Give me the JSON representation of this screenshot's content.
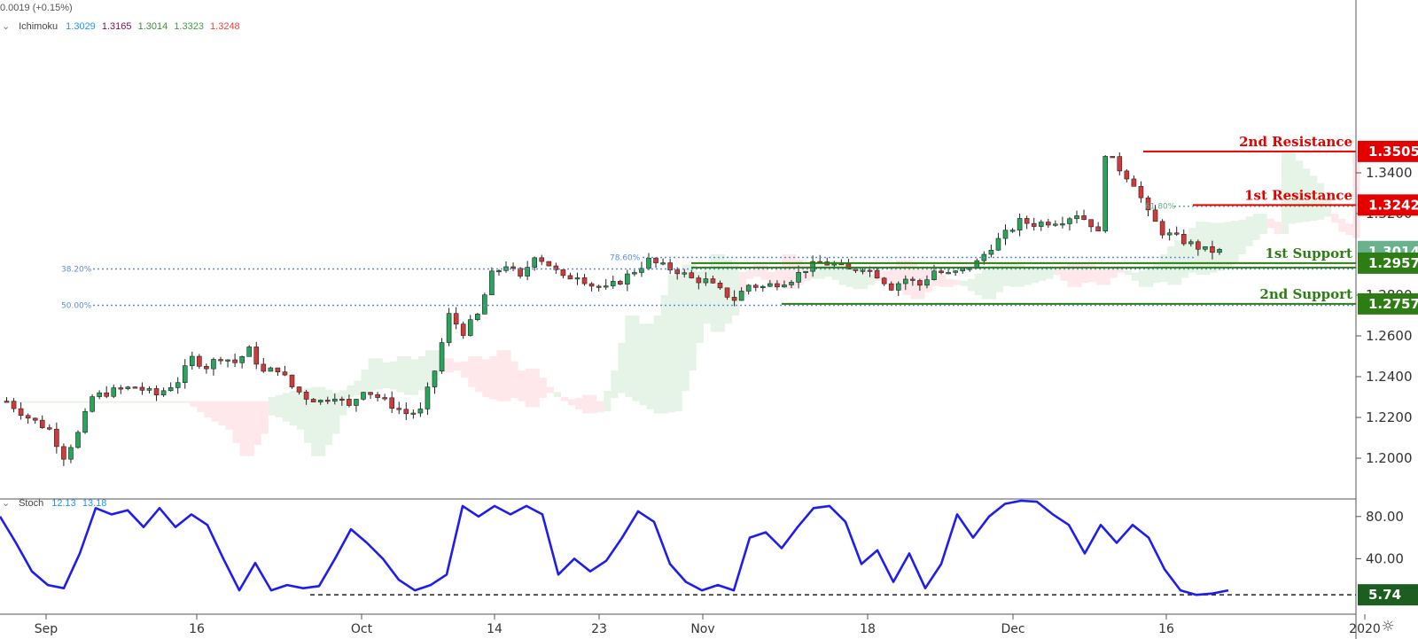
{
  "header": {
    "change_text": "0.0019 (+0.15%)",
    "ichimoku_label": "Ichimoku",
    "ichimoku_values": [
      "1.3029",
      "1.3165",
      "1.3014",
      "1.3323",
      "1.3248"
    ],
    "ichimoku_colors": [
      "#2196f3",
      "#880e4f",
      "#388e3c",
      "#43a047",
      "#f44336"
    ]
  },
  "stoch_header": {
    "label": "Stoch",
    "k": "12.13",
    "d": "13.18"
  },
  "levels": {
    "r2": {
      "label": "2nd Resistance",
      "price": "1.3505",
      "color": "#e50000"
    },
    "r1": {
      "label": "1st Resistance",
      "price": "1.3242",
      "color": "#e50000"
    },
    "s1": {
      "label": "1st Support",
      "price": "1.2957",
      "color": "#2e7d14"
    },
    "s2": {
      "label": "2nd Support",
      "price": "1.2757",
      "color": "#2e7d14"
    },
    "last": {
      "price": "1.3014",
      "color": "#6ab28e"
    },
    "stoch_level": {
      "value": "5.74",
      "color": "#1b5e20"
    }
  },
  "fib_labels": {
    "f382": "38.20%",
    "f500": "50.00%",
    "f786": "78.60%",
    "f618": "61.80%"
  },
  "chart_data": {
    "type": "candlestick",
    "price_axis_ticks": [
      "1.3400",
      "1.3200",
      "1.2800",
      "1.2600",
      "1.2400",
      "1.2200",
      "1.2000"
    ],
    "time_axis_ticks": [
      "Sep",
      "16",
      "Oct",
      "14",
      "23",
      "Nov",
      "18",
      "Dec",
      "16",
      "2020"
    ],
    "stoch_axis_ticks": [
      "80.00",
      "40.00"
    ],
    "ylim": [
      1.19,
      1.356
    ],
    "fib_levels": {
      "38.20%": 1.2928,
      "50.00%": 1.275,
      "78.60%": 1.2985,
      "61.80%": 1.3236
    },
    "close_path": [
      [
        0,
        1.228
      ],
      [
        3,
        1.22
      ],
      [
        6,
        1.214
      ],
      [
        8,
        1.201
      ],
      [
        10,
        1.212
      ],
      [
        12,
        1.23
      ],
      [
        15,
        1.233
      ],
      [
        18,
        1.235
      ],
      [
        21,
        1.231
      ],
      [
        24,
        1.238
      ],
      [
        26,
        1.249
      ],
      [
        28,
        1.245
      ],
      [
        30,
        1.25
      ],
      [
        32,
        1.247
      ],
      [
        34,
        1.253
      ],
      [
        36,
        1.242
      ],
      [
        38,
        1.244
      ],
      [
        40,
        1.235
      ],
      [
        42,
        1.23
      ],
      [
        44,
        1.228
      ],
      [
        46,
        1.231
      ],
      [
        48,
        1.225
      ],
      [
        50,
        1.234
      ],
      [
        52,
        1.23
      ],
      [
        54,
        1.226
      ],
      [
        56,
        1.222
      ],
      [
        58,
        1.223
      ],
      [
        60,
        1.243
      ],
      [
        62,
        1.27
      ],
      [
        64,
        1.262
      ],
      [
        66,
        1.27
      ],
      [
        68,
        1.29
      ],
      [
        70,
        1.295
      ],
      [
        72,
        1.288
      ],
      [
        74,
        1.3
      ],
      [
        76,
        1.295
      ],
      [
        78,
        1.288
      ],
      [
        80,
        1.29
      ],
      [
        82,
        1.285
      ],
      [
        84,
        1.283
      ],
      [
        86,
        1.287
      ],
      [
        88,
        1.292
      ],
      [
        90,
        1.297
      ],
      [
        92,
        1.294
      ],
      [
        94,
        1.292
      ],
      [
        96,
        1.288
      ],
      [
        98,
        1.287
      ],
      [
        100,
        1.282
      ],
      [
        102,
        1.278
      ],
      [
        104,
        1.285
      ],
      [
        106,
        1.284
      ],
      [
        108,
        1.286
      ],
      [
        110,
        1.288
      ],
      [
        112,
        1.293
      ],
      [
        114,
        1.296
      ],
      [
        116,
        1.295
      ],
      [
        118,
        1.292
      ],
      [
        120,
        1.294
      ],
      [
        122,
        1.29
      ],
      [
        124,
        1.284
      ],
      [
        126,
        1.288
      ],
      [
        128,
        1.285
      ],
      [
        130,
        1.292
      ],
      [
        132,
        1.29
      ],
      [
        134,
        1.292
      ],
      [
        136,
        1.296
      ],
      [
        138,
        1.304
      ],
      [
        140,
        1.31
      ],
      [
        142,
        1.316
      ],
      [
        144,
        1.315
      ],
      [
        146,
        1.316
      ],
      [
        148,
        1.317
      ],
      [
        150,
        1.32
      ],
      [
        152,
        1.315
      ],
      [
        153,
        1.31
      ],
      [
        154,
        1.35
      ],
      [
        156,
        1.342
      ],
      [
        158,
        1.335
      ],
      [
        160,
        1.32
      ],
      [
        162,
        1.311
      ],
      [
        164,
        1.308
      ],
      [
        166,
        1.305
      ],
      [
        168,
        1.302
      ],
      [
        170,
        1.3014
      ]
    ],
    "stoch_k_path": [
      [
        0,
        80
      ],
      [
        2,
        55
      ],
      [
        4,
        28
      ],
      [
        6,
        15
      ],
      [
        8,
        12
      ],
      [
        10,
        45
      ],
      [
        12,
        88
      ],
      [
        14,
        82
      ],
      [
        16,
        86
      ],
      [
        18,
        70
      ],
      [
        20,
        88
      ],
      [
        22,
        70
      ],
      [
        24,
        82
      ],
      [
        26,
        72
      ],
      [
        28,
        40
      ],
      [
        30,
        10
      ],
      [
        32,
        36
      ],
      [
        34,
        10
      ],
      [
        36,
        15
      ],
      [
        38,
        12
      ],
      [
        40,
        14
      ],
      [
        42,
        40
      ],
      [
        44,
        68
      ],
      [
        46,
        55
      ],
      [
        48,
        40
      ],
      [
        50,
        20
      ],
      [
        52,
        10
      ],
      [
        54,
        15
      ],
      [
        56,
        25
      ],
      [
        58,
        90
      ],
      [
        60,
        80
      ],
      [
        62,
        90
      ],
      [
        64,
        82
      ],
      [
        66,
        90
      ],
      [
        68,
        82
      ],
      [
        70,
        25
      ],
      [
        72,
        40
      ],
      [
        74,
        28
      ],
      [
        76,
        38
      ],
      [
        78,
        60
      ],
      [
        80,
        85
      ],
      [
        82,
        75
      ],
      [
        84,
        35
      ],
      [
        86,
        18
      ],
      [
        88,
        10
      ],
      [
        90,
        15
      ],
      [
        92,
        10
      ],
      [
        94,
        60
      ],
      [
        96,
        65
      ],
      [
        98,
        50
      ],
      [
        100,
        70
      ],
      [
        102,
        88
      ],
      [
        104,
        90
      ],
      [
        106,
        75
      ],
      [
        108,
        35
      ],
      [
        110,
        48
      ],
      [
        112,
        18
      ],
      [
        114,
        45
      ],
      [
        116,
        12
      ],
      [
        118,
        35
      ],
      [
        120,
        82
      ],
      [
        122,
        60
      ],
      [
        124,
        80
      ],
      [
        126,
        92
      ],
      [
        128,
        95
      ],
      [
        130,
        94
      ],
      [
        132,
        82
      ],
      [
        134,
        72
      ],
      [
        136,
        45
      ],
      [
        138,
        72
      ],
      [
        140,
        55
      ],
      [
        142,
        72
      ],
      [
        144,
        60
      ],
      [
        146,
        30
      ],
      [
        148,
        10
      ],
      [
        150,
        5.74
      ],
      [
        152,
        7
      ],
      [
        154,
        10
      ]
    ]
  }
}
